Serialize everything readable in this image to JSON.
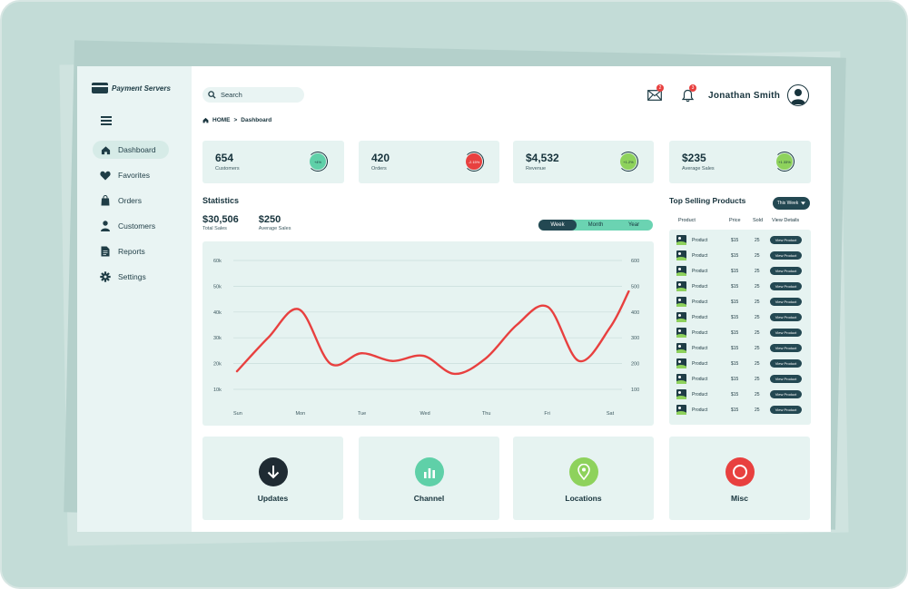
{
  "brand": {
    "name": "Payment Servers"
  },
  "search": {
    "placeholder": "Search"
  },
  "header": {
    "user_name": "Jonathan Smith",
    "mail_badge": "2",
    "bell_badge": "3"
  },
  "breadcrumb": {
    "home": "HOME",
    "separator": ">",
    "current": "Dashboard"
  },
  "sidebar": {
    "items": [
      {
        "label": "Dashboard",
        "icon": "home-icon",
        "active": true
      },
      {
        "label": "Favorites",
        "icon": "heart-icon"
      },
      {
        "label": "Orders",
        "icon": "shopping-bag-icon"
      },
      {
        "label": "Customers",
        "icon": "user-icon"
      },
      {
        "label": "Reports",
        "icon": "document-icon"
      },
      {
        "label": "Settings",
        "icon": "gear-icon"
      }
    ]
  },
  "stats": [
    {
      "value": "654",
      "label": "Customers",
      "delta": "+4%",
      "color": "#5fd0a8"
    },
    {
      "value": "420",
      "label": "Orders",
      "delta": "-2.15%",
      "color": "#e8403f"
    },
    {
      "value": "$4,532",
      "label": "Revenue",
      "delta": "+1.2%",
      "color": "#8ed25c"
    },
    {
      "value": "$235",
      "label": "Average Sales",
      "delta": "+1.33%",
      "color": "#8ed25c"
    }
  ],
  "statistics": {
    "title": "Statistics",
    "total_sales": {
      "value": "$30,506",
      "label": "Total Sales"
    },
    "average_sales": {
      "value": "$250",
      "label": "Average Sales"
    },
    "periods": [
      "Week",
      "Month",
      "Year"
    ],
    "selected_period": "Week"
  },
  "chart_data": {
    "type": "line",
    "categories": [
      "Sun",
      "Mon",
      "Tue",
      "Wed",
      "Thu",
      "Fri",
      "Sat"
    ],
    "x": [
      0,
      0.5,
      1,
      1.5,
      2,
      2.5,
      3,
      3.5,
      4,
      4.5,
      5,
      5.5,
      6,
      6.3
    ],
    "series": [
      {
        "values": [
          17,
          30,
          41,
          20,
          24,
          21,
          23,
          16,
          22,
          35,
          42,
          21,
          34,
          48
        ],
        "color": "#e8403f"
      }
    ],
    "y_left_ticks": [
      "10k",
      "20k",
      "30k",
      "40k",
      "50k",
      "60k"
    ],
    "y_right_ticks": [
      "100",
      "200",
      "300",
      "400",
      "500",
      "600"
    ],
    "ylim": [
      10,
      60
    ],
    "grid": true
  },
  "top_selling": {
    "title": "Top Selling Products",
    "filter": "This Week",
    "columns": [
      "Product",
      "Price",
      "Sold",
      "View Details"
    ],
    "rows": [
      {
        "product": "Product",
        "price": "$15",
        "sold": "25",
        "action": "View Product"
      },
      {
        "product": "Product",
        "price": "$15",
        "sold": "25",
        "action": "View Product"
      },
      {
        "product": "Product",
        "price": "$15",
        "sold": "25",
        "action": "View Product"
      },
      {
        "product": "Product",
        "price": "$15",
        "sold": "25",
        "action": "View Product"
      },
      {
        "product": "Product",
        "price": "$15",
        "sold": "25",
        "action": "View Product"
      },
      {
        "product": "Product",
        "price": "$15",
        "sold": "25",
        "action": "View Product"
      },
      {
        "product": "Product",
        "price": "$15",
        "sold": "25",
        "action": "View Product"
      },
      {
        "product": "Product",
        "price": "$15",
        "sold": "25",
        "action": "View Product"
      },
      {
        "product": "Product",
        "price": "$15",
        "sold": "25",
        "action": "View Product"
      },
      {
        "product": "Product",
        "price": "$15",
        "sold": "25",
        "action": "View Product"
      },
      {
        "product": "Product",
        "price": "$15",
        "sold": "25",
        "action": "View Product"
      },
      {
        "product": "Product",
        "price": "$15",
        "sold": "25",
        "action": "View Product"
      }
    ]
  },
  "bottom_cards": [
    {
      "label": "Updates",
      "icon": "download-arrow-icon",
      "color": "#1f2b33"
    },
    {
      "label": "Channel",
      "icon": "bar-chart-icon",
      "color": "#5fd0a8"
    },
    {
      "label": "Locations",
      "icon": "map-pin-icon",
      "color": "#8ed25c"
    },
    {
      "label": "Misc",
      "icon": "circle-icon",
      "color": "#e8403f"
    }
  ]
}
